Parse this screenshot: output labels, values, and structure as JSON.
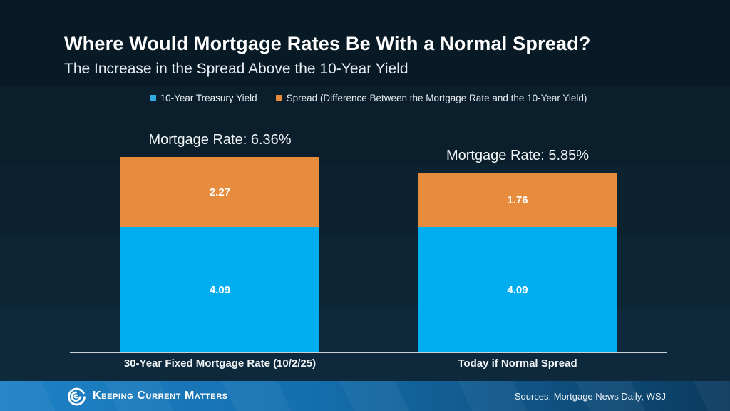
{
  "title": "Where Would Mortgage Rates Be With a Normal Spread?",
  "subtitle": "The Increase in the Spread Above the 10-Year Yield",
  "legend": [
    {
      "label": "10-Year Treasury Yield",
      "color": "#2fabe1"
    },
    {
      "label": "Spread (Difference Between the Mortgage Rate and the 10-Year Yield)",
      "color": "#e78b3d"
    }
  ],
  "chart_data": {
    "type": "bar",
    "stacked": true,
    "categories": [
      "30-Year Fixed Mortgage Rate (10/2/25)",
      "Today if Normal Spread"
    ],
    "series": [
      {
        "name": "10-Year Treasury Yield",
        "color": "#00aeef",
        "values": [
          4.09,
          4.09
        ]
      },
      {
        "name": "Spread (Difference Between the Mortgage Rate and the 10-Year Yield)",
        "color": "#e78b3d",
        "values": [
          2.27,
          1.76
        ]
      }
    ],
    "totals": [
      6.36,
      5.85
    ],
    "total_labels": [
      "Mortgage Rate: 6.36%",
      "Mortgage Rate: 5.85%"
    ],
    "ylim": [
      0,
      6.4
    ],
    "grid": false,
    "legend_position": "top"
  },
  "footer": {
    "brand": "Keeping Current Matters",
    "sources": "Sources: Mortgage News Daily, WSJ"
  },
  "colors": {
    "background_top": "#071a25",
    "background_bottom": "#0e293b",
    "bar_blue": "#00aeef",
    "bar_orange": "#e78b3d",
    "axis_line": "#c9d1d8",
    "footer_left": "#1e82c6",
    "footer_right": "#0b3a5e"
  }
}
